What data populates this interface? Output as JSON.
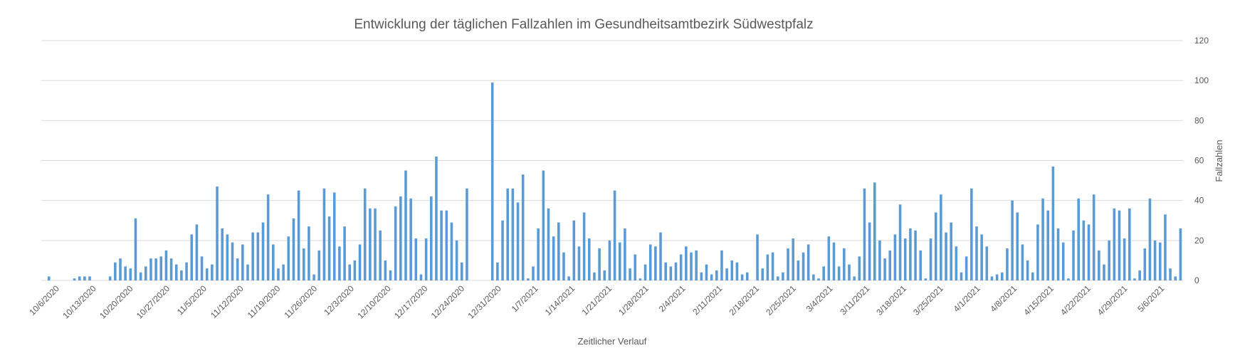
{
  "chart_data": {
    "type": "bar",
    "title": "Entwicklung der täglichen Fallzahlen im Gesundheitsamtbezirk Südwestpfalz",
    "xlabel": "Zeitlicher Verlauf",
    "ylabel": "Fallzahlen",
    "y_axis_position": "right",
    "ylim": [
      0,
      120
    ],
    "yticks": [
      0,
      20,
      40,
      60,
      80,
      100,
      120
    ],
    "grid": true,
    "legend": "none",
    "bar_color": "#5b9bd5",
    "x_start": "10/6/2020",
    "x_tick_labels": [
      "10/6/2020",
      "10/13/2020",
      "10/20/2020",
      "10/27/2020",
      "11/5/2020",
      "11/12/2020",
      "11/19/2020",
      "11/26/2020",
      "12/3/2020",
      "12/10/2020",
      "12/17/2020",
      "12/24/2020",
      "12/31/2020",
      "1/7/2021",
      "1/14/2021",
      "1/21/2021",
      "1/28/2021",
      "2/4/2021",
      "2/11/2021",
      "2/18/2021",
      "2/25/2021",
      "3/4/2021",
      "3/11/2021",
      "3/18/2021",
      "3/25/2021",
      "4/1/2021",
      "4/8/2021",
      "4/15/2021",
      "4/22/2021",
      "4/29/2021",
      "5/6/2021"
    ],
    "values": [
      0,
      2,
      0,
      0,
      0,
      0,
      1,
      2,
      2,
      2,
      0,
      0,
      0,
      2,
      9,
      11,
      7,
      6,
      31,
      4,
      7,
      11,
      11,
      12,
      15,
      11,
      8,
      5,
      9,
      23,
      28,
      12,
      6,
      8,
      47,
      26,
      23,
      19,
      11,
      18,
      8,
      24,
      24,
      29,
      43,
      18,
      6,
      8,
      22,
      31,
      45,
      16,
      27,
      3,
      15,
      46,
      32,
      44,
      17,
      27,
      8,
      10,
      18,
      46,
      36,
      36,
      25,
      10,
      5,
      37,
      42,
      55,
      41,
      21,
      3,
      21,
      42,
      62,
      35,
      35,
      29,
      20,
      9,
      46,
      0,
      0,
      0,
      0,
      99,
      9,
      30,
      46,
      46,
      39,
      53,
      1,
      7,
      26,
      55,
      36,
      22,
      29,
      14,
      2,
      30,
      17,
      34,
      21,
      4,
      16,
      5,
      20,
      45,
      19,
      26,
      6,
      13,
      1,
      8,
      18,
      17,
      24,
      9,
      7,
      9,
      13,
      17,
      14,
      15,
      4,
      8,
      3,
      5,
      15,
      6,
      10,
      9,
      3,
      4,
      0,
      23,
      6,
      13,
      14,
      2,
      4,
      16,
      21,
      10,
      14,
      18,
      3,
      1,
      7,
      22,
      19,
      7,
      16,
      8,
      2,
      12,
      46,
      29,
      49,
      20,
      11,
      15,
      23,
      38,
      21,
      26,
      25,
      15,
      1,
      21,
      34,
      43,
      24,
      29,
      17,
      4,
      12,
      46,
      27,
      23,
      17,
      2,
      3,
      4,
      16,
      40,
      34,
      18,
      10,
      4,
      28,
      41,
      35,
      57,
      26,
      19,
      1,
      25,
      41,
      30,
      28,
      43,
      15,
      8,
      20,
      36,
      35,
      21,
      36,
      1,
      5,
      16,
      41,
      20,
      19,
      33,
      6,
      2,
      26
    ]
  }
}
